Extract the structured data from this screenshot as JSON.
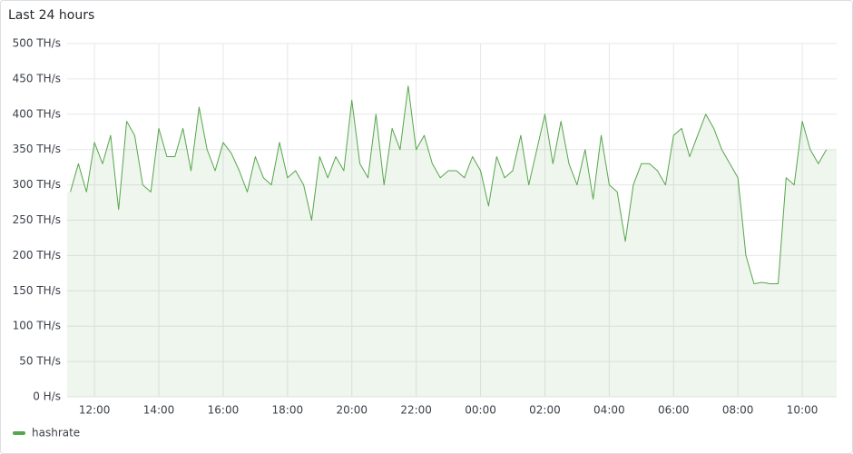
{
  "chart_data": {
    "type": "line",
    "title": "Last 24 hours",
    "x": [
      11.25,
      11.5,
      11.75,
      12,
      12.25,
      12.5,
      12.75,
      13,
      13.25,
      13.5,
      13.75,
      14,
      14.25,
      14.5,
      14.75,
      15,
      15.25,
      15.5,
      15.75,
      16,
      16.25,
      16.5,
      16.75,
      17,
      17.25,
      17.5,
      17.75,
      18,
      18.25,
      18.5,
      18.75,
      19,
      19.25,
      19.5,
      19.75,
      20,
      20.25,
      20.5,
      20.75,
      21,
      21.25,
      21.5,
      21.75,
      22,
      22.25,
      22.5,
      22.75,
      23,
      23.25,
      23.5,
      23.75,
      24,
      24.25,
      24.5,
      24.75,
      25,
      25.25,
      25.5,
      25.75,
      26,
      26.25,
      26.5,
      26.75,
      27,
      27.25,
      27.5,
      27.75,
      28,
      28.25,
      28.5,
      28.75,
      29,
      29.25,
      29.5,
      29.75,
      30,
      30.25,
      30.5,
      30.75,
      31,
      31.25,
      31.5,
      31.75,
      32,
      32.25,
      32.5,
      32.75,
      33,
      33.25,
      33.5,
      33.75,
      34,
      34.25,
      34.5,
      34.75
    ],
    "series": [
      {
        "name": "hashrate",
        "color": "#56a64b",
        "values": [
          290,
          330,
          290,
          360,
          330,
          370,
          265,
          390,
          370,
          300,
          290,
          380,
          340,
          340,
          380,
          320,
          410,
          350,
          320,
          360,
          345,
          320,
          290,
          340,
          310,
          300,
          360,
          310,
          320,
          300,
          250,
          340,
          310,
          340,
          320,
          420,
          330,
          310,
          400,
          300,
          380,
          350,
          440,
          350,
          370,
          330,
          310,
          320,
          320,
          310,
          340,
          320,
          270,
          340,
          310,
          320,
          370,
          300,
          350,
          400,
          330,
          390,
          330,
          300,
          350,
          280,
          370,
          300,
          290,
          220,
          300,
          330,
          330,
          320,
          300,
          370,
          380,
          340,
          370,
          400,
          380,
          350,
          330,
          310,
          200,
          160,
          162,
          160,
          160,
          310,
          300,
          390,
          350,
          330,
          350
        ]
      }
    ],
    "xlim": [
      11.15,
      35.07
    ],
    "xticks": [
      {
        "value": 12,
        "label": "12:00"
      },
      {
        "value": 14,
        "label": "14:00"
      },
      {
        "value": 16,
        "label": "16:00"
      },
      {
        "value": 18,
        "label": "18:00"
      },
      {
        "value": 20,
        "label": "20:00"
      },
      {
        "value": 22,
        "label": "22:00"
      },
      {
        "value": 24,
        "label": "00:00"
      },
      {
        "value": 26,
        "label": "02:00"
      },
      {
        "value": 28,
        "label": "04:00"
      },
      {
        "value": 30,
        "label": "06:00"
      },
      {
        "value": 32,
        "label": "08:00"
      },
      {
        "value": 34,
        "label": "10:00"
      }
    ],
    "ylim": [
      0,
      500
    ],
    "yticks": [
      {
        "value": 0,
        "label": "0 H/s"
      },
      {
        "value": 50,
        "label": "50 TH/s"
      },
      {
        "value": 100,
        "label": "100 TH/s"
      },
      {
        "value": 150,
        "label": "150 TH/s"
      },
      {
        "value": 200,
        "label": "200 TH/s"
      },
      {
        "value": 250,
        "label": "250 TH/s"
      },
      {
        "value": 300,
        "label": "300 TH/s"
      },
      {
        "value": 350,
        "label": "350 TH/s"
      },
      {
        "value": 400,
        "label": "400 TH/s"
      },
      {
        "value": 450,
        "label": "450 TH/s"
      },
      {
        "value": 500,
        "label": "500 TH/s"
      }
    ],
    "grid": true,
    "legend": "bottom-left"
  }
}
